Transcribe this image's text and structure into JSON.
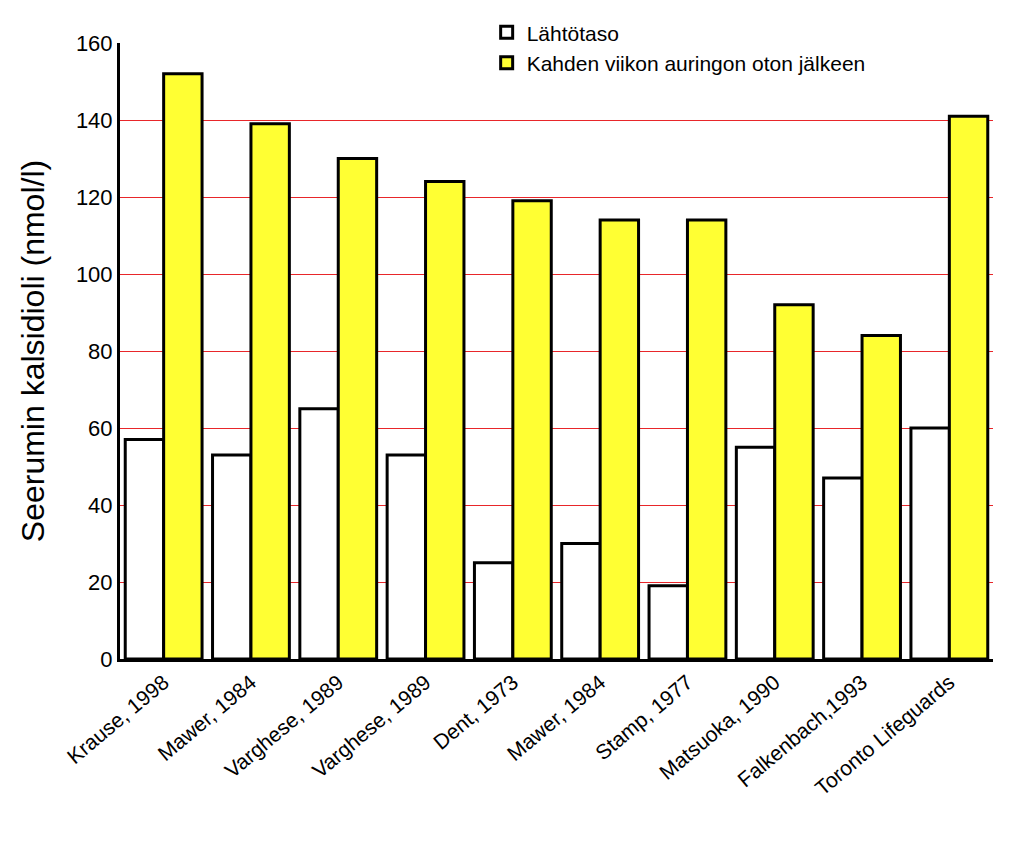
{
  "chart_data": {
    "type": "bar",
    "y_label": "Seerumin kalsidioli (nmol/l)",
    "categories": [
      "Krause, 1998",
      "Mawer, 1984",
      "Varghese, 1989",
      "Varghese, 1989",
      "Dent, 1973",
      "Mawer, 1984",
      "Stamp, 1977",
      "Matsuoka, 1990",
      "Falkenbach,1993",
      "Toronto Lifeguards"
    ],
    "series": [
      {
        "name": "Lähtötaso",
        "color": "#ffffff",
        "values": [
          57,
          53,
          65,
          53,
          25,
          30,
          19,
          55,
          47,
          60
        ]
      },
      {
        "name": "Kahden viikon auringon oton jälkeen",
        "color": "#ffff33",
        "values": [
          152,
          139,
          130,
          124,
          119,
          114,
          114,
          92,
          84,
          141
        ]
      }
    ],
    "ylim": [
      0,
      160
    ],
    "yticks": [
      0,
      20,
      40,
      60,
      80,
      100,
      120,
      140,
      160
    ],
    "grid": true,
    "legend": "top"
  }
}
